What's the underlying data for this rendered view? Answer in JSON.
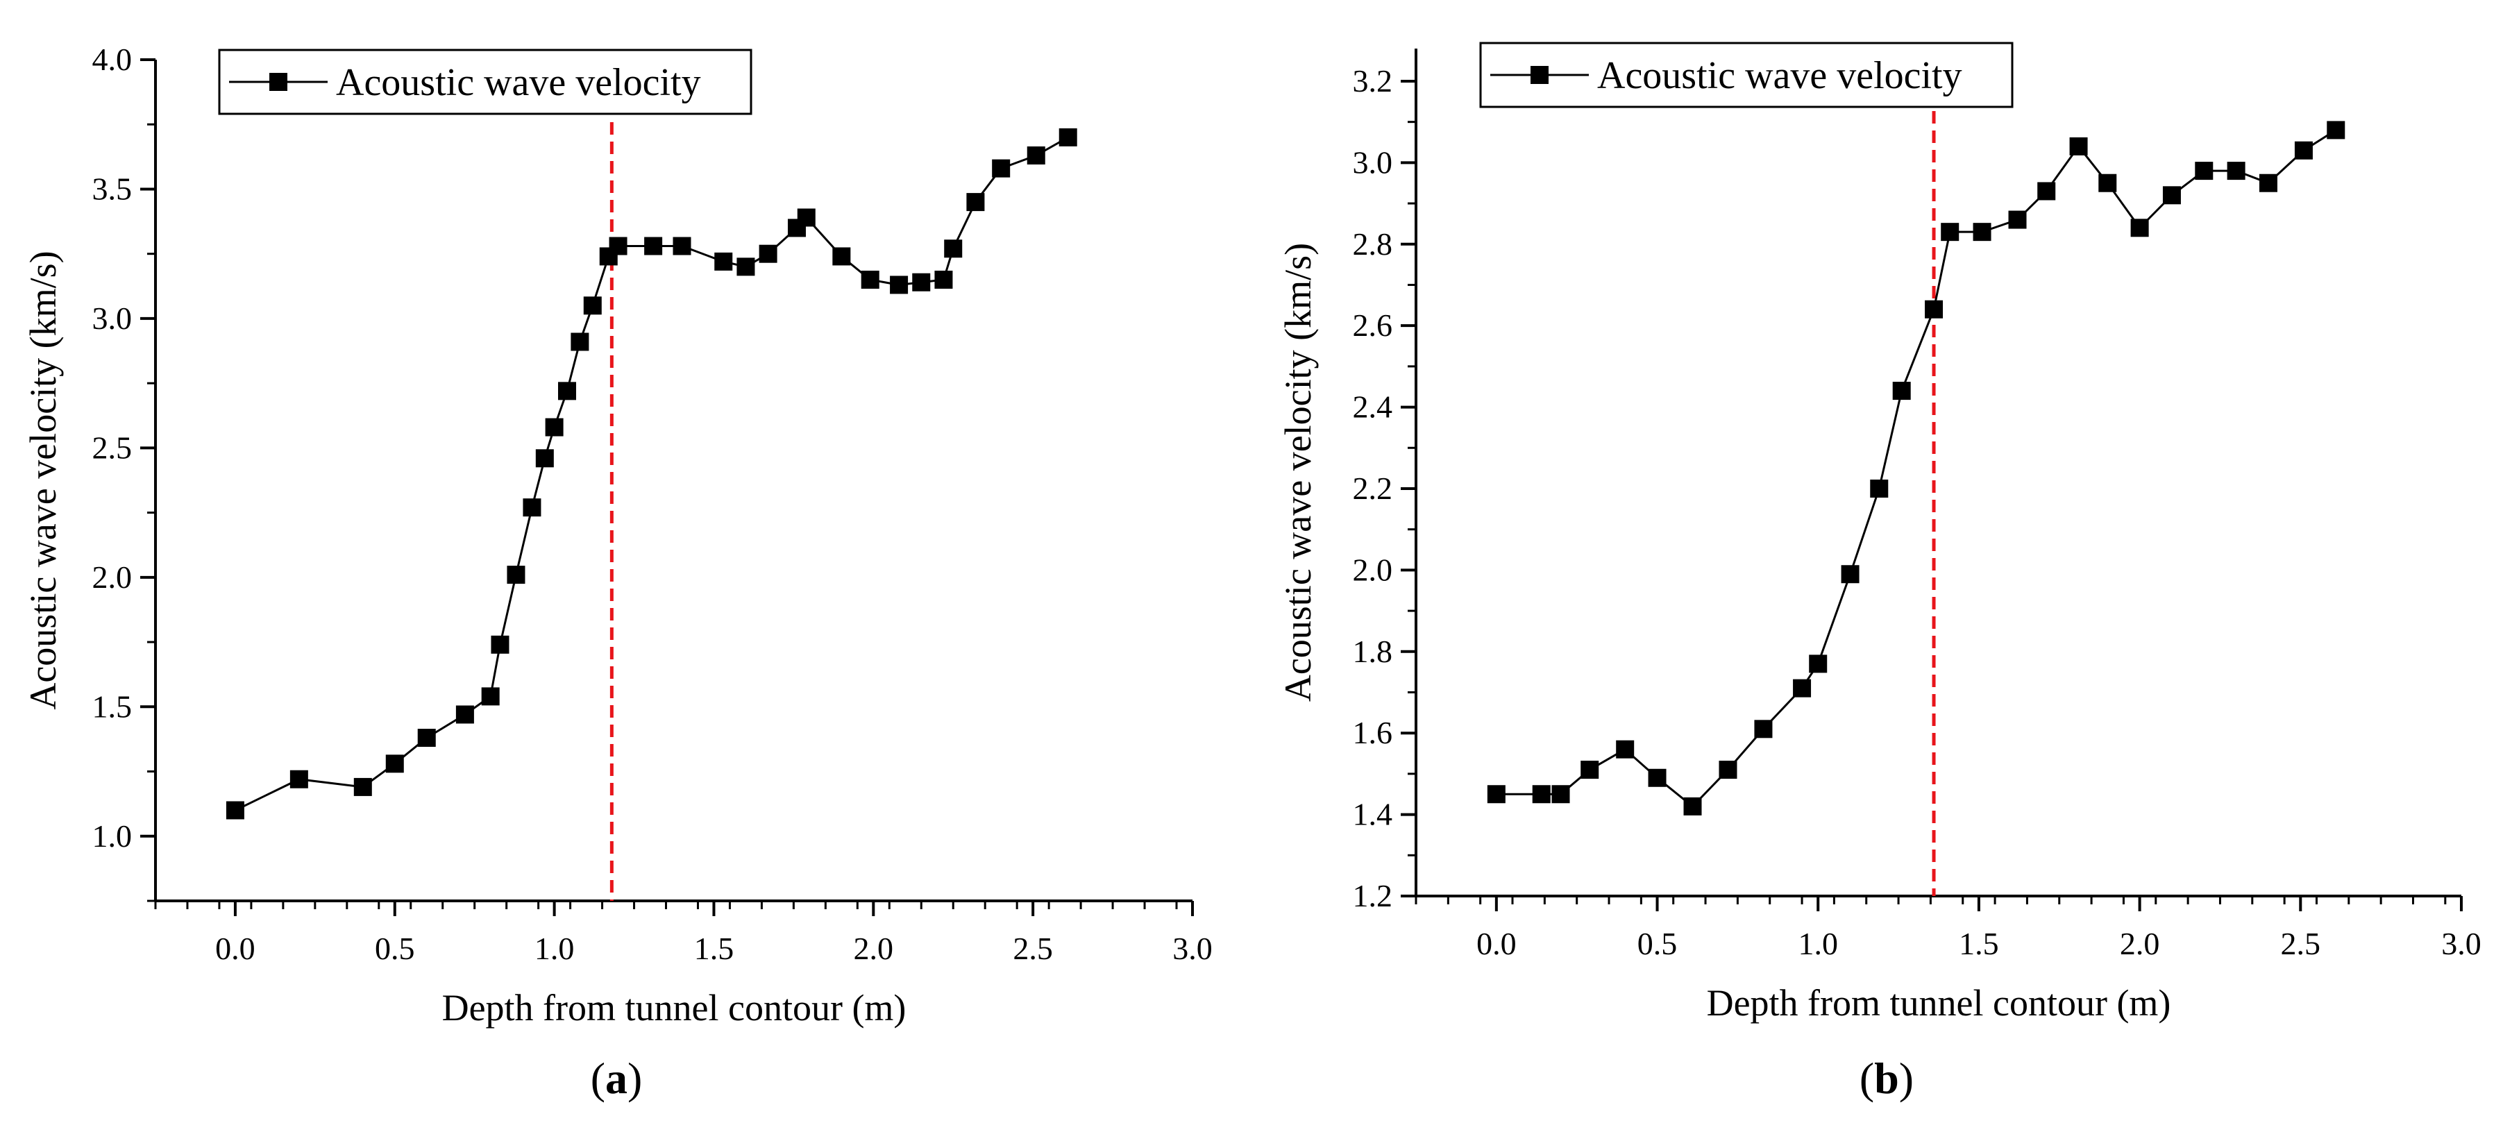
{
  "chart_data": [
    {
      "panel": "a",
      "panel_label": "a",
      "type": "line",
      "xlabel": "Depth from tunnel contour (m)",
      "ylabel": "Acoustic wave velocity (km/s)",
      "xlim": [
        -0.25,
        3.0
      ],
      "ylim": [
        0.75,
        4.0
      ],
      "xticks": [
        "0.0",
        "0.5",
        "1.0",
        "1.5",
        "2.0",
        "2.5",
        "3.0"
      ],
      "yticks": [
        "1.0",
        "1.5",
        "2.0",
        "2.5",
        "3.0",
        "3.5",
        "4.0"
      ],
      "xtick_values": [
        0,
        0.5,
        1.0,
        1.5,
        2.0,
        2.5,
        3.0
      ],
      "ytick_values": [
        1.0,
        1.5,
        2.0,
        2.5,
        3.0,
        3.5,
        4.0
      ],
      "reference_line_x": 1.18,
      "series": [
        {
          "name": "Acoustic wave velocity",
          "color": "#000000",
          "x": [
            0.0,
            0.2,
            0.4,
            0.5,
            0.6,
            0.72,
            0.8,
            0.83,
            0.88,
            0.93,
            0.97,
            1.0,
            1.04,
            1.08,
            1.12,
            1.17,
            1.2,
            1.31,
            1.4,
            1.53,
            1.6,
            1.67,
            1.76,
            1.79,
            1.9,
            1.99,
            2.08,
            2.15,
            2.22,
            2.25,
            2.32,
            2.4,
            2.51,
            2.61
          ],
          "y": [
            1.1,
            1.22,
            1.19,
            1.28,
            1.38,
            1.47,
            1.54,
            1.74,
            2.01,
            2.27,
            2.46,
            2.58,
            2.72,
            2.91,
            3.05,
            3.24,
            3.28,
            3.28,
            3.28,
            3.22,
            3.2,
            3.25,
            3.35,
            3.39,
            3.24,
            3.15,
            3.13,
            3.14,
            3.15,
            3.27,
            3.45,
            3.58,
            3.63,
            3.7
          ]
        }
      ]
    },
    {
      "panel": "b",
      "panel_label": "b",
      "type": "line",
      "xlabel": "Depth from tunnel contour (m)",
      "ylabel": "Acoustic wave velocity (km/s)",
      "xlim": [
        -0.25,
        3.0
      ],
      "ylim": [
        1.2,
        3.28
      ],
      "xticks": [
        "0.0",
        "0.5",
        "1.0",
        "1.5",
        "2.0",
        "2.5",
        "3.0"
      ],
      "yticks": [
        "1.2",
        "1.4",
        "1.6",
        "1.8",
        "2.0",
        "2.2",
        "2.4",
        "2.6",
        "2.8",
        "3.0",
        "3.2"
      ],
      "xtick_values": [
        0,
        0.5,
        1.0,
        1.5,
        2.0,
        2.5,
        3.0
      ],
      "ytick_values": [
        1.2,
        1.4,
        1.6,
        1.8,
        2.0,
        2.2,
        2.4,
        2.6,
        2.8,
        3.0,
        3.2
      ],
      "reference_line_x": 1.36,
      "series": [
        {
          "name": "Acoustic wave velocity",
          "color": "#000000",
          "x": [
            0.0,
            0.14,
            0.2,
            0.29,
            0.4,
            0.5,
            0.61,
            0.72,
            0.83,
            0.95,
            1.0,
            1.1,
            1.19,
            1.26,
            1.36,
            1.41,
            1.51,
            1.62,
            1.71,
            1.81,
            1.9,
            2.0,
            2.1,
            2.2,
            2.3,
            2.4,
            2.51,
            2.61
          ],
          "y": [
            1.45,
            1.45,
            1.45,
            1.51,
            1.56,
            1.49,
            1.42,
            1.51,
            1.61,
            1.71,
            1.77,
            1.99,
            2.2,
            2.44,
            2.64,
            2.83,
            2.83,
            2.86,
            2.93,
            3.04,
            2.95,
            2.84,
            2.92,
            2.98,
            2.98,
            2.95,
            3.03,
            3.08
          ]
        }
      ]
    }
  ],
  "style": {
    "reference_line_color": "#e8151b",
    "marker_color": "#000000",
    "axis_color": "#000000"
  }
}
